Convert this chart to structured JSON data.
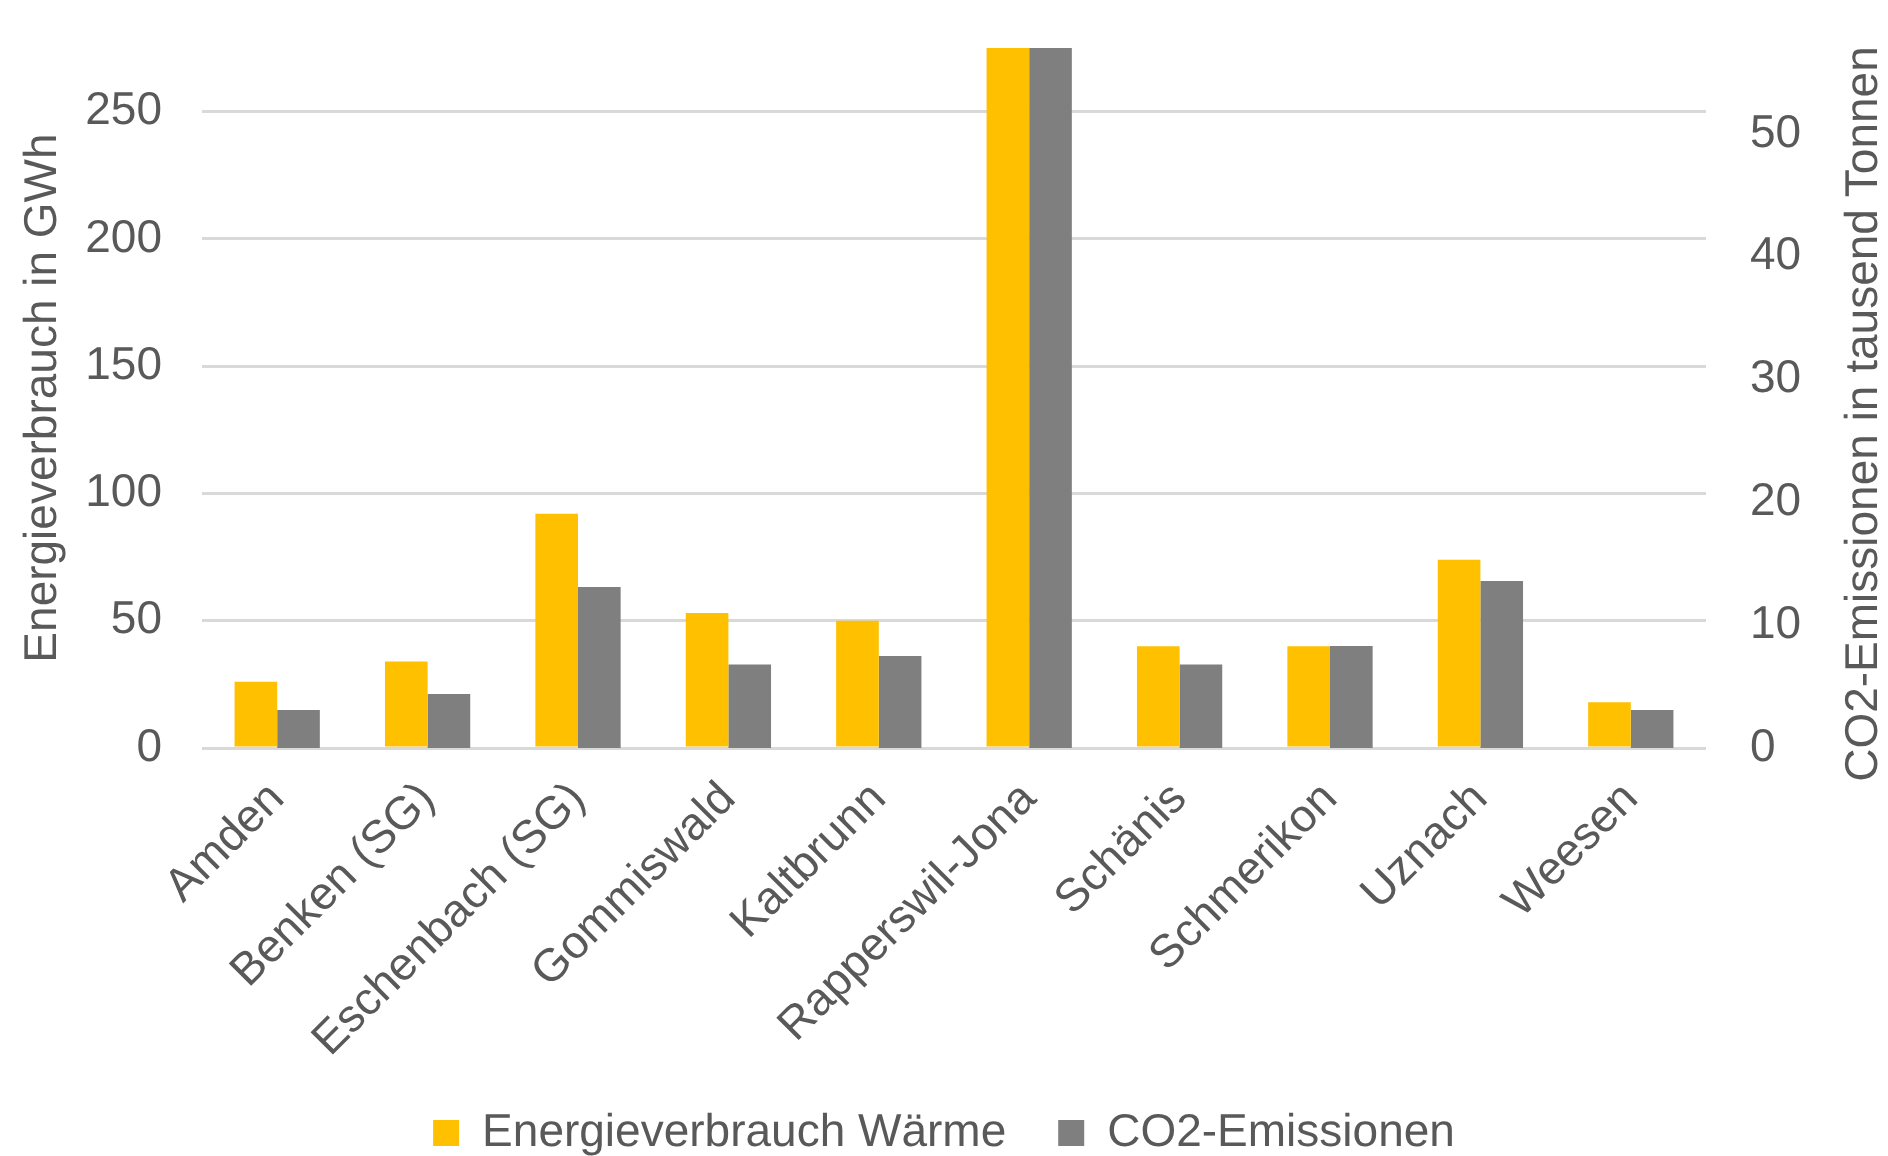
{
  "chart_data": {
    "type": "bar",
    "categories": [
      "Amden",
      "Benken (SG)",
      "Eschenbach (SG)",
      "Gommiswald",
      "Kaltbrunn",
      "Rapperswil-Jona",
      "Schänis",
      "Schmerikon",
      "Uznach",
      "Weesen"
    ],
    "series": [
      {
        "name": "Energieverbrauch Wärme",
        "color": "#ffc000",
        "values": [
          26,
          34,
          92,
          53,
          50,
          275,
          40,
          40,
          74,
          18
        ]
      },
      {
        "name": "CO2-Emissionen",
        "color": "#7f7f7f",
        "axis": "y2",
        "values": [
          3.1,
          4.4,
          13.1,
          6.8,
          7.5,
          57,
          6.8,
          8.3,
          13.6,
          3.1
        ]
      }
    ],
    "ylabel": "Energieverbrauch in GWh",
    "y2label": "CO2-Emissionen in tausend Tonnen",
    "ylim": [
      0,
      275
    ],
    "yticks": [
      0,
      50,
      100,
      150,
      200,
      250
    ],
    "y2lim": [
      0,
      57
    ],
    "y2ticks": [
      0,
      10,
      20,
      30,
      40,
      50
    ],
    "grid": "y",
    "legend": "bottom"
  }
}
